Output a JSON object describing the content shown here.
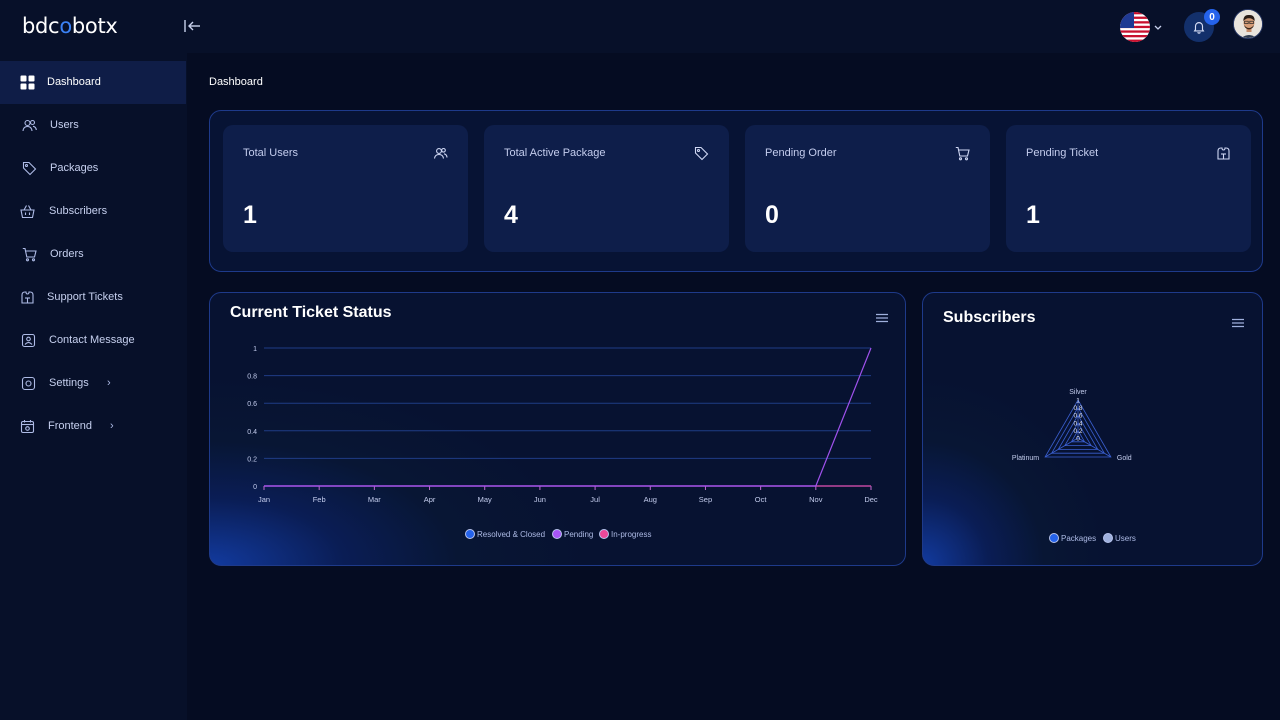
{
  "app": {
    "logo_prefix": "bdc",
    "logo_o": "o",
    "logo_suffix": "botx"
  },
  "header": {
    "notification_count": "0"
  },
  "sidebar": {
    "items": [
      {
        "label": "Dashboard",
        "icon": "dashboard-icon",
        "active": true
      },
      {
        "label": "Users",
        "icon": "users-icon"
      },
      {
        "label": "Packages",
        "icon": "tag-icon"
      },
      {
        "label": "Subscribers",
        "icon": "basket-icon"
      },
      {
        "label": "Orders",
        "icon": "cart-icon"
      },
      {
        "label": "Support Tickets",
        "icon": "ticket-icon"
      },
      {
        "label": "Contact Message",
        "icon": "contact-icon"
      },
      {
        "label": "Settings",
        "icon": "settings-icon",
        "has_submenu": true
      },
      {
        "label": "Frontend",
        "icon": "frontend-icon",
        "has_submenu": true
      }
    ]
  },
  "breadcrumb": "Dashboard",
  "stats": [
    {
      "title": "Total Users",
      "value": "1",
      "icon": "users-icon"
    },
    {
      "title": "Total Active Package",
      "value": "4",
      "icon": "tag-icon"
    },
    {
      "title": "Pending Order",
      "value": "0",
      "icon": "cart-icon"
    },
    {
      "title": "Pending Ticket",
      "value": "1",
      "icon": "ticket-icon"
    }
  ],
  "colors": {
    "accent": "#2563eb",
    "series_resolved": "#2563eb",
    "series_pending": "#a855f7",
    "series_inprogress": "#ec4899"
  },
  "ticket_panel": {
    "title": "Current Ticket Status"
  },
  "subscribers_panel": {
    "title": "Subscribers"
  },
  "chart_data": [
    {
      "type": "line",
      "title": "Current Ticket Status",
      "categories": [
        "Jan",
        "Feb",
        "Mar",
        "Apr",
        "May",
        "Jun",
        "Jul",
        "Aug",
        "Sep",
        "Oct",
        "Nov",
        "Dec"
      ],
      "y_ticks": [
        "0",
        "0.2",
        "0.4",
        "0.6",
        "0.8",
        "1"
      ],
      "ylim": [
        0,
        1
      ],
      "grid": true,
      "legend": "bottom",
      "series": [
        {
          "name": "Resolved & Closed",
          "values": [
            0,
            0,
            0,
            0,
            0,
            0,
            0,
            0,
            0,
            0,
            0,
            0
          ]
        },
        {
          "name": "Pending",
          "values": [
            0,
            0,
            0,
            0,
            0,
            0,
            0,
            0,
            0,
            0,
            0,
            1
          ]
        },
        {
          "name": "In-progress",
          "values": [
            0,
            0,
            0,
            0,
            0,
            0,
            0,
            0,
            0,
            0,
            0,
            0
          ]
        }
      ]
    },
    {
      "type": "radar",
      "title": "Subscribers",
      "categories": [
        "Silver",
        "Gold",
        "Platinum"
      ],
      "r_ticks": [
        "0",
        "0.2",
        "0.4",
        "0.6",
        "0.8",
        "1"
      ],
      "rlim": [
        0,
        1
      ],
      "legend": "bottom",
      "series": [
        {
          "name": "Packages",
          "values": [
            0,
            0,
            0
          ]
        },
        {
          "name": "Users",
          "values": [
            0,
            0,
            0
          ]
        }
      ]
    }
  ]
}
